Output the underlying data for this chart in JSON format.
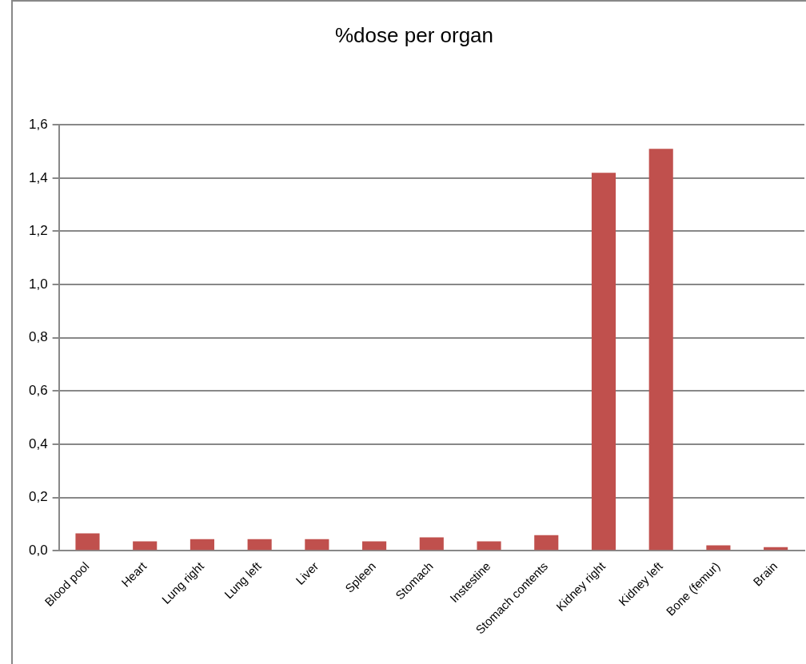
{
  "chart_data": {
    "type": "bar",
    "title": "%dose per organ",
    "categories": [
      "Blood pool",
      "Heart",
      "Lung right",
      "Lung left",
      "Liver",
      "Spleen",
      "Stomach",
      "Instestine",
      "Stomach contents",
      "Kidney right",
      "Kidney left",
      "Bone (femur)",
      "Brain"
    ],
    "values": [
      0.066,
      0.036,
      0.044,
      0.044,
      0.044,
      0.036,
      0.051,
      0.036,
      0.059,
      1.42,
      1.51,
      0.021,
      0.014
    ],
    "color": "#c0504d",
    "ylim": [
      0,
      1.6
    ],
    "yticks": [
      {
        "value": 0,
        "label": "0,0"
      },
      {
        "value": 0.2,
        "label": "0,2"
      },
      {
        "value": 0.4,
        "label": "0,4"
      },
      {
        "value": 0.6,
        "label": "0,6"
      },
      {
        "value": 0.8,
        "label": "0,8"
      },
      {
        "value": 1,
        "label": "1,0"
      },
      {
        "value": 1.2,
        "label": "1,2"
      },
      {
        "value": 1.4,
        "label": "1,4"
      },
      {
        "value": 1.6,
        "label": "1,6"
      }
    ],
    "grid": "y",
    "legend": false
  }
}
